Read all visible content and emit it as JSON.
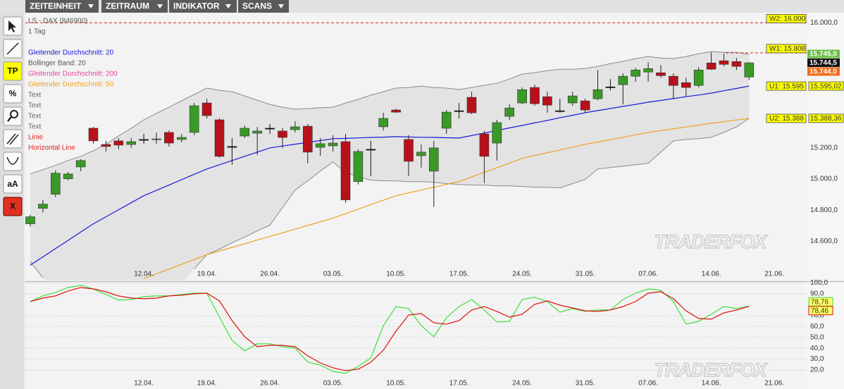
{
  "toolbar": {
    "menus": [
      "ZEITEINHEIT",
      "ZEITRAUM",
      "INDIKATOR",
      "SCANS"
    ],
    "tools": [
      "TP",
      "%",
      "aA",
      "X"
    ]
  },
  "chart_data": [
    {
      "type": "candlestick",
      "title": "LS - DAX (846900)",
      "subtitle": "1 Tag",
      "watermark": "TRADERFOX",
      "categories": [
        null,
        null,
        null,
        null,
        null,
        null,
        null,
        null,
        null,
        "12.04.",
        null,
        null,
        null,
        null,
        "19.04.",
        null,
        null,
        null,
        null,
        "26.04.",
        null,
        null,
        null,
        null,
        "03.05.",
        null,
        null,
        null,
        null,
        "10.05.",
        null,
        null,
        null,
        null,
        "17.05.",
        null,
        null,
        null,
        null,
        "24.05.",
        null,
        null,
        null,
        null,
        "31.05.",
        null,
        null,
        null,
        null,
        "07.06.",
        null,
        null,
        null,
        null,
        "14.06.",
        null,
        null,
        null,
        null,
        "21.06."
      ],
      "open": [
        14713,
        14812,
        14902,
        15001,
        15077,
        15325,
        15221,
        15244,
        15221,
        15253,
        15253,
        15298,
        15253,
        15298,
        15487,
        15379,
        15208,
        15275,
        15293,
        15325,
        15307,
        15316,
        15338,
        15203,
        15212,
        15239,
        14983,
        15190,
        15334,
        15442,
        15253,
        15149,
        15050,
        15325,
        15437,
        15523,
        15289,
        15230,
        15401,
        15487,
        15586,
        15527,
        15437,
        15487,
        15500,
        15514,
        15590,
        15604,
        15658,
        15685,
        15680,
        15658,
        15617,
        15599,
        15743,
        15757,
        15752,
        15653,
        null,
        null
      ],
      "high": [
        14771,
        14866,
        15055,
        15046,
        15127,
        15334,
        15244,
        15262,
        15262,
        15289,
        15298,
        15311,
        15289,
        15487,
        15514,
        15388,
        15262,
        15343,
        15334,
        15352,
        15325,
        15370,
        15352,
        15262,
        15280,
        15289,
        15190,
        15244,
        15424,
        15451,
        15280,
        15221,
        15244,
        15442,
        15487,
        15559,
        15307,
        15379,
        15478,
        15586,
        15604,
        15559,
        15514,
        15559,
        15514,
        15698,
        15640,
        15676,
        15712,
        15748,
        15730,
        15676,
        15649,
        15716,
        15811,
        15802,
        15775,
        15748,
        null,
        null
      ],
      "low": [
        14695,
        14785,
        14884,
        14992,
        15050,
        15226,
        15176,
        15190,
        15199,
        15226,
        15226,
        15208,
        15235,
        15280,
        15388,
        15136,
        15091,
        15262,
        15154,
        15289,
        15199,
        15298,
        15100,
        15149,
        15176,
        14848,
        14965,
        15019,
        15311,
        15424,
        15019,
        15073,
        14821,
        15289,
        15388,
        15415,
        14974,
        15118,
        15379,
        15478,
        15469,
        15424,
        15424,
        15469,
        15424,
        15505,
        15568,
        15478,
        15622,
        15622,
        15649,
        15514,
        15527,
        15586,
        15698,
        15721,
        15698,
        15635,
        null,
        null
      ],
      "close": [
        14758,
        14839,
        15037,
        15032,
        15118,
        15244,
        15208,
        15217,
        15239,
        15253,
        15257,
        15230,
        15266,
        15469,
        15406,
        15145,
        15208,
        15325,
        15307,
        15325,
        15266,
        15334,
        15172,
        15226,
        15230,
        14866,
        15176,
        15190,
        15388,
        15428,
        15113,
        15172,
        15199,
        15428,
        15437,
        15424,
        15145,
        15361,
        15455,
        15572,
        15482,
        15473,
        15437,
        15532,
        15442,
        15572,
        15590,
        15658,
        15698,
        15707,
        15662,
        15599,
        15586,
        15698,
        15703,
        15734,
        15721,
        15744,
        null,
        null
      ],
      "up_color": "#3a9a27",
      "down_color": "#b8111b",
      "doji_color": "#111111",
      "ma20": {
        "color": "#1a1adb",
        "values": [
          14448,
          14501,
          14554,
          14607,
          14660,
          14713,
          14758,
          14803,
          14848,
          14893,
          14927,
          14961,
          14996,
          15030,
          15064,
          15091,
          15118,
          15145,
          15172,
          15199,
          15211,
          15223,
          15234,
          15246,
          15258,
          15260,
          15263,
          15266,
          15268,
          15271,
          15269,
          15267,
          15266,
          15264,
          15262,
          15278,
          15294,
          15311,
          15327,
          15343,
          15359,
          15375,
          15392,
          15408,
          15424,
          15438,
          15451,
          15465,
          15478,
          15492,
          15503,
          15515,
          15527,
          15538,
          15550,
          15565,
          15580,
          15595,
          null,
          null
        ],
        "tag": {
          "value": 15595,
          "label": "U1: 15.595"
        },
        "axis_tag": {
          "value": 15595.02,
          "label": "15.595,02"
        }
      },
      "ma50": {
        "color": "#f0a020",
        "values": [
          null,
          null,
          null,
          null,
          null,
          null,
          null,
          null,
          null,
          14362,
          14393,
          14423,
          14454,
          14484,
          14515,
          14538,
          14562,
          14585,
          14609,
          14632,
          14655,
          14679,
          14702,
          14726,
          14749,
          14778,
          14807,
          14836,
          14864,
          14893,
          14911,
          14929,
          14947,
          14965,
          14983,
          15013,
          15043,
          15072,
          15102,
          15132,
          15150,
          15168,
          15186,
          15204,
          15222,
          15237,
          15252,
          15267,
          15283,
          15298,
          15310,
          15321,
          15333,
          15345,
          15357,
          15367,
          15378,
          15388,
          null,
          null
        ],
        "tag": {
          "value": 15388,
          "label": "U2: 15.388"
        },
        "axis_tag": {
          "value": 15388.36,
          "label": "15.388,36"
        }
      },
      "bollinger": {
        "color": "#8a8a8a",
        "fill": "#e3e3e3",
        "upper": [
          15033,
          15060,
          15087,
          15118,
          15145,
          15181,
          15222,
          15276,
          15325,
          15379,
          15420,
          15460,
          15501,
          15541,
          15582,
          15568,
          15559,
          15532,
          15505,
          15478,
          15460,
          15447,
          15451,
          15456,
          15460,
          15487,
          15510,
          15537,
          15559,
          15582,
          15586,
          15595,
          15586,
          15582,
          15573,
          15586,
          15600,
          15613,
          15640,
          15672,
          15681,
          15694,
          15703,
          15703,
          15708,
          15721,
          15739,
          15753,
          15771,
          15784,
          15775,
          15771,
          15784,
          15802,
          15816,
          15811,
          15811,
          15798,
          null,
          null
        ],
        "lower": [
          14470,
          14367,
          null,
          null,
          null,
          null,
          null,
          null,
          null,
          null,
          null,
          null,
          null,
          14425,
          14515,
          14551,
          14592,
          14628,
          14668,
          14704,
          14817,
          14929,
          14988,
          15051,
          15109,
          15042,
          15015,
          14992,
          14988,
          14988,
          14983,
          14983,
          14979,
          14970,
          14965,
          14961,
          14961,
          14956,
          14956,
          14952,
          14947,
          14947,
          14943,
          14970,
          14997,
          15064,
          15073,
          15082,
          15091,
          15100,
          15172,
          15244,
          15253,
          15258,
          15267,
          15298,
          15334,
          15388,
          null,
          null
        ]
      },
      "legend": [
        {
          "text": "Gleitender Durchschnitt: 20",
          "color": "#1a1adb"
        },
        {
          "text": "Bollinger Band: 20",
          "color": "#555555"
        },
        {
          "text": "Gleitender Durchschnitt: 200",
          "color": "#e04aa0"
        },
        {
          "text": "Gleitender Durchschnitt: 50",
          "color": "#f0a020"
        },
        {
          "text": "Text",
          "color": "#666666"
        },
        {
          "text": "Text",
          "color": "#666666"
        },
        {
          "text": "Text",
          "color": "#666666"
        },
        {
          "text": "Text",
          "color": "#666666"
        },
        {
          "text": "Linie",
          "color": "#e02020"
        },
        {
          "text": "Horizontal Line",
          "color": "#e02020"
        }
      ],
      "horizontal_lines": [
        {
          "label": "W2: 16.000",
          "value": 16000,
          "kind": "horizontal",
          "color": "#e02020"
        },
        {
          "label": "W1: 15.808",
          "value": 15808,
          "kind": "segment",
          "color": "#e02020"
        }
      ],
      "price_labels": [
        {
          "value": 15745,
          "label": "15.745,0",
          "color": "#6cbf4a"
        },
        {
          "value": 15744.5,
          "label": "15.744,5",
          "color": "#111111"
        },
        {
          "value": 15744,
          "label": "15.744,0",
          "color": "#f26a1b"
        }
      ],
      "ylim": [
        14350,
        16065
      ],
      "yticks": [
        {
          "value": 16000,
          "label": "16.000,0"
        },
        {
          "value": 15200,
          "label": "15.200,0"
        },
        {
          "value": 15000,
          "label": "15.000,0"
        },
        {
          "value": 14800,
          "label": "14.800,0"
        },
        {
          "value": 14600,
          "label": "14.600,0"
        }
      ]
    },
    {
      "type": "line",
      "watermark": "TRADERFOX",
      "categories": [
        null,
        null,
        null,
        null,
        null,
        null,
        null,
        null,
        null,
        "12.04.",
        null,
        null,
        null,
        null,
        "19.04.",
        null,
        null,
        null,
        null,
        "26.04.",
        null,
        null,
        null,
        null,
        "03.05.",
        null,
        null,
        null,
        null,
        "10.05.",
        null,
        null,
        null,
        null,
        "17.05.",
        null,
        null,
        null,
        null,
        "24.05.",
        null,
        null,
        null,
        null,
        "31.05.",
        null,
        null,
        null,
        null,
        "07.06.",
        null,
        null,
        null,
        null,
        "14.06.",
        null,
        null,
        null,
        null,
        "21.06."
      ],
      "series": [
        {
          "color": "#3de03d",
          "values": [
            82.9,
            88.1,
            91.3,
            95.8,
            97.8,
            94.5,
            89.4,
            84.2,
            84.8,
            87.4,
            88.1,
            88.1,
            89.4,
            90.6,
            90.6,
            68.6,
            47.2,
            37.5,
            44.0,
            44.0,
            41.4,
            40.1,
            27.1,
            24.6,
            18.7,
            16.8,
            23.3,
            31.0,
            60.8,
            78.3,
            76.4,
            60.8,
            50.5,
            68.0,
            78.3,
            84.8,
            75.1,
            64.1,
            64.7,
            84.8,
            86.8,
            82.9,
            73.2,
            76.4,
            73.8,
            75.1,
            75.1,
            84.8,
            90.6,
            94.5,
            93.2,
            82.9,
            62.1,
            64.7,
            71.2,
            78.3,
            76.4,
            78.76,
            null,
            null
          ],
          "last_label": "78,76"
        },
        {
          "color": "#e01010",
          "values": [
            82.9,
            86.1,
            88.1,
            92.6,
            95.8,
            94.5,
            91.9,
            88.1,
            86.1,
            85.5,
            86.1,
            88.1,
            88.7,
            90.0,
            90.6,
            83.5,
            65.4,
            50.5,
            41.4,
            42.7,
            42.7,
            41.4,
            33.0,
            26.5,
            22.0,
            19.4,
            20.7,
            27.1,
            38.2,
            55.7,
            70.6,
            71.9,
            63.4,
            62.1,
            65.4,
            75.1,
            78.3,
            73.8,
            68.6,
            71.2,
            80.3,
            83.5,
            79.6,
            77.0,
            74.4,
            73.8,
            75.1,
            78.3,
            82.9,
            90.6,
            91.9,
            85.5,
            74.4,
            67.3,
            66.7,
            72.5,
            75.1,
            78.46,
            null,
            null
          ],
          "last_label": "78,46"
        }
      ],
      "ylim": [
        13,
        100
      ],
      "yticks": [
        {
          "value": 100,
          "label": "100,0"
        },
        {
          "value": 90,
          "label": "90,0"
        },
        {
          "value": 70,
          "label": "70,0"
        },
        {
          "value": 60,
          "label": "60,0"
        },
        {
          "value": 50,
          "label": "50,0"
        },
        {
          "value": 40,
          "label": "40,0"
        },
        {
          "value": 30,
          "label": "30,0"
        },
        {
          "value": 20,
          "label": "20,0"
        }
      ],
      "grid": true
    }
  ]
}
